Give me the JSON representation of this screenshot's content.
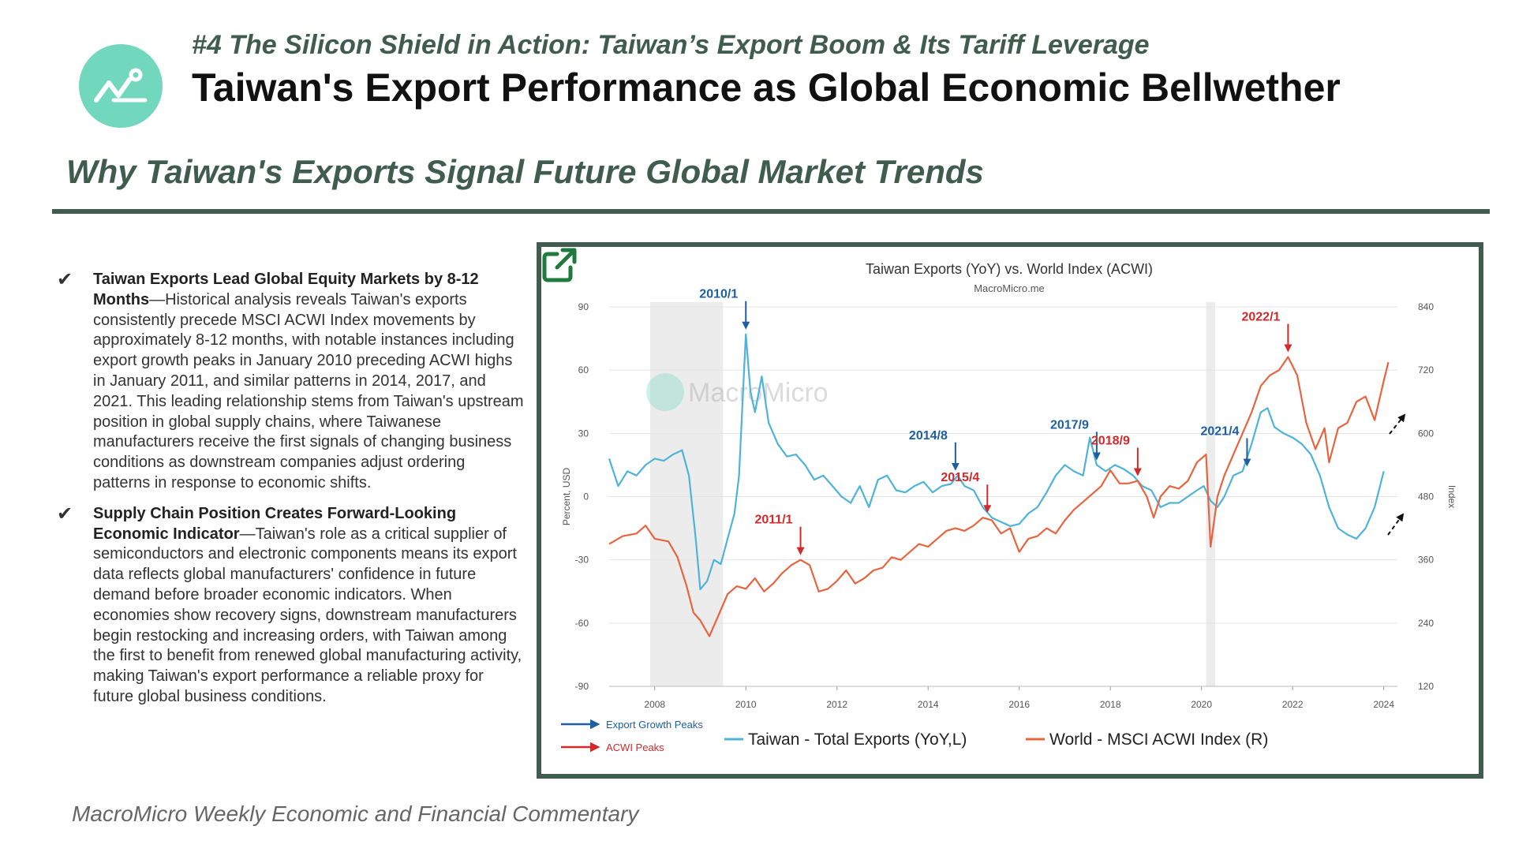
{
  "header": {
    "kicker": "#4 The Silicon Shield in Action: Taiwan’s Export Boom & Its Tariff Leverage",
    "title": "Taiwan's Export Performance as Global Economic Bellwether",
    "logo_icon": "chart-line-icon"
  },
  "subtitle": "Why Taiwan's Exports Signal Future Global Market Trends",
  "bullets": [
    {
      "heading": "Taiwan Exports Lead Global Equity Markets by 8-12 Months",
      "body": "—Historical analysis reveals Taiwan's exports consistently precede MSCI ACWI Index movements by approximately 8-12 months, with notable instances including export growth peaks in January 2010 preceding ACWI highs in January 2011, and similar patterns in 2014, 2017, and 2021. This leading relationship stems from Taiwan's upstream position in global supply chains, where Taiwanese manufacturers receive the first signals of changing business conditions as downstream companies adjust ordering patterns in response to economic shifts."
    },
    {
      "heading": "Supply Chain Position Creates Forward-Looking Economic Indicator",
      "body": "—Taiwan's role as a critical supplier of semiconductors and electronic components means its export data reflects global manufacturers' confidence in future demand before broader economic indicators. When economies show recovery signs, downstream manufacturers begin restocking and increasing orders, with Taiwan among the first to benefit from renewed global manufacturing activity, making Taiwan's export performance a reliable proxy for future global business conditions."
    }
  ],
  "footer": "MacroMicro Weekly Economic and Financial Commentary",
  "chart_data": {
    "type": "line",
    "title": "Taiwan Exports (YoY) vs. World Index (ACWI)",
    "source": "MacroMicro.me",
    "watermark": "MacroMicro",
    "ylabel_left": "Percent, USD",
    "ylabel_right": "Index",
    "xlim": [
      2007,
      2024.3
    ],
    "ylim_left": [
      -90,
      90
    ],
    "ylim_right": [
      120,
      840
    ],
    "x_ticks": [
      2008,
      2010,
      2012,
      2014,
      2016,
      2018,
      2020,
      2022,
      2024
    ],
    "y_ticks_left": [
      90,
      60,
      30,
      0,
      -30,
      -60,
      -90
    ],
    "y_ticks_right": [
      840,
      720,
      600,
      480,
      360,
      240,
      120
    ],
    "recessions": [
      [
        2007.9,
        2009.5
      ],
      [
        2020.1,
        2020.3
      ]
    ],
    "series": [
      {
        "name": "Taiwan - Total Exports (YoY,L)",
        "axis": "left",
        "color": "#4fb3d9",
        "points": [
          [
            2007.0,
            18
          ],
          [
            2007.2,
            5
          ],
          [
            2007.4,
            12
          ],
          [
            2007.6,
            10
          ],
          [
            2007.8,
            15
          ],
          [
            2008.0,
            18
          ],
          [
            2008.2,
            17
          ],
          [
            2008.4,
            20
          ],
          [
            2008.6,
            22
          ],
          [
            2008.75,
            10
          ],
          [
            2008.9,
            -20
          ],
          [
            2009.0,
            -44
          ],
          [
            2009.15,
            -40
          ],
          [
            2009.3,
            -30
          ],
          [
            2009.45,
            -32
          ],
          [
            2009.6,
            -20
          ],
          [
            2009.75,
            -8
          ],
          [
            2009.85,
            10
          ],
          [
            2010.0,
            77
          ],
          [
            2010.1,
            50
          ],
          [
            2010.2,
            40
          ],
          [
            2010.35,
            57
          ],
          [
            2010.5,
            35
          ],
          [
            2010.7,
            25
          ],
          [
            2010.9,
            19
          ],
          [
            2011.1,
            20
          ],
          [
            2011.3,
            15
          ],
          [
            2011.5,
            8
          ],
          [
            2011.7,
            10
          ],
          [
            2011.9,
            5
          ],
          [
            2012.1,
            0
          ],
          [
            2012.3,
            -3
          ],
          [
            2012.5,
            5
          ],
          [
            2012.7,
            -5
          ],
          [
            2012.9,
            8
          ],
          [
            2013.1,
            10
          ],
          [
            2013.3,
            3
          ],
          [
            2013.5,
            2
          ],
          [
            2013.7,
            5
          ],
          [
            2013.9,
            7
          ],
          [
            2014.1,
            2
          ],
          [
            2014.3,
            5
          ],
          [
            2014.5,
            6
          ],
          [
            2014.65,
            10
          ],
          [
            2014.8,
            5
          ],
          [
            2015.0,
            3
          ],
          [
            2015.2,
            -5
          ],
          [
            2015.4,
            -10
          ],
          [
            2015.6,
            -12
          ],
          [
            2015.8,
            -14
          ],
          [
            2016.0,
            -13
          ],
          [
            2016.2,
            -8
          ],
          [
            2016.4,
            -5
          ],
          [
            2016.6,
            2
          ],
          [
            2016.8,
            10
          ],
          [
            2017.0,
            15
          ],
          [
            2017.2,
            12
          ],
          [
            2017.4,
            10
          ],
          [
            2017.55,
            28
          ],
          [
            2017.7,
            15
          ],
          [
            2017.9,
            12
          ],
          [
            2018.1,
            15
          ],
          [
            2018.3,
            13
          ],
          [
            2018.5,
            10
          ],
          [
            2018.7,
            5
          ],
          [
            2018.9,
            3
          ],
          [
            2019.1,
            -5
          ],
          [
            2019.3,
            -3
          ],
          [
            2019.5,
            -3
          ],
          [
            2019.7,
            0
          ],
          [
            2019.9,
            3
          ],
          [
            2020.05,
            5
          ],
          [
            2020.2,
            -2
          ],
          [
            2020.35,
            -5
          ],
          [
            2020.5,
            0
          ],
          [
            2020.7,
            10
          ],
          [
            2020.9,
            12
          ],
          [
            2021.1,
            25
          ],
          [
            2021.3,
            40
          ],
          [
            2021.45,
            42
          ],
          [
            2021.6,
            33
          ],
          [
            2021.8,
            30
          ],
          [
            2022.0,
            28
          ],
          [
            2022.2,
            25
          ],
          [
            2022.4,
            20
          ],
          [
            2022.6,
            10
          ],
          [
            2022.8,
            -5
          ],
          [
            2023.0,
            -15
          ],
          [
            2023.2,
            -18
          ],
          [
            2023.4,
            -20
          ],
          [
            2023.6,
            -15
          ],
          [
            2023.8,
            -5
          ],
          [
            2024.0,
            12
          ]
        ]
      },
      {
        "name": "World - MSCI ACWI Index (R)",
        "axis": "right",
        "color": "#e8643f",
        "points": [
          [
            2007.0,
            390
          ],
          [
            2007.3,
            405
          ],
          [
            2007.6,
            410
          ],
          [
            2007.8,
            425
          ],
          [
            2008.0,
            400
          ],
          [
            2008.3,
            395
          ],
          [
            2008.5,
            365
          ],
          [
            2008.7,
            310
          ],
          [
            2008.85,
            260
          ],
          [
            2009.0,
            245
          ],
          [
            2009.2,
            215
          ],
          [
            2009.4,
            255
          ],
          [
            2009.6,
            295
          ],
          [
            2009.8,
            310
          ],
          [
            2010.0,
            305
          ],
          [
            2010.2,
            325
          ],
          [
            2010.4,
            300
          ],
          [
            2010.6,
            315
          ],
          [
            2010.8,
            335
          ],
          [
            2011.0,
            350
          ],
          [
            2011.2,
            360
          ],
          [
            2011.4,
            350
          ],
          [
            2011.6,
            300
          ],
          [
            2011.8,
            305
          ],
          [
            2012.0,
            320
          ],
          [
            2012.2,
            340
          ],
          [
            2012.4,
            315
          ],
          [
            2012.6,
            325
          ],
          [
            2012.8,
            340
          ],
          [
            2013.0,
            345
          ],
          [
            2013.2,
            365
          ],
          [
            2013.4,
            360
          ],
          [
            2013.6,
            375
          ],
          [
            2013.8,
            390
          ],
          [
            2014.0,
            385
          ],
          [
            2014.2,
            400
          ],
          [
            2014.4,
            415
          ],
          [
            2014.6,
            420
          ],
          [
            2014.8,
            415
          ],
          [
            2015.0,
            425
          ],
          [
            2015.2,
            440
          ],
          [
            2015.4,
            435
          ],
          [
            2015.6,
            410
          ],
          [
            2015.8,
            420
          ],
          [
            2016.0,
            375
          ],
          [
            2016.2,
            400
          ],
          [
            2016.4,
            405
          ],
          [
            2016.6,
            420
          ],
          [
            2016.8,
            410
          ],
          [
            2017.0,
            435
          ],
          [
            2017.2,
            455
          ],
          [
            2017.4,
            470
          ],
          [
            2017.6,
            485
          ],
          [
            2017.8,
            500
          ],
          [
            2018.0,
            530
          ],
          [
            2018.2,
            505
          ],
          [
            2018.4,
            505
          ],
          [
            2018.6,
            510
          ],
          [
            2018.8,
            480
          ],
          [
            2018.95,
            440
          ],
          [
            2019.1,
            480
          ],
          [
            2019.3,
            500
          ],
          [
            2019.5,
            495
          ],
          [
            2019.7,
            510
          ],
          [
            2019.9,
            545
          ],
          [
            2020.1,
            560
          ],
          [
            2020.2,
            385
          ],
          [
            2020.35,
            480
          ],
          [
            2020.5,
            520
          ],
          [
            2020.7,
            560
          ],
          [
            2020.9,
            600
          ],
          [
            2021.1,
            640
          ],
          [
            2021.3,
            690
          ],
          [
            2021.5,
            710
          ],
          [
            2021.7,
            720
          ],
          [
            2021.9,
            745
          ],
          [
            2022.1,
            710
          ],
          [
            2022.3,
            620
          ],
          [
            2022.5,
            570
          ],
          [
            2022.7,
            610
          ],
          [
            2022.8,
            545
          ],
          [
            2023.0,
            610
          ],
          [
            2023.2,
            620
          ],
          [
            2023.4,
            660
          ],
          [
            2023.6,
            670
          ],
          [
            2023.8,
            625
          ],
          [
            2024.0,
            700
          ],
          [
            2024.1,
            735
          ]
        ]
      }
    ],
    "annotations": [
      {
        "label": "2010/1",
        "type": "export",
        "x": 2010.0
      },
      {
        "label": "2011/1",
        "type": "acwi",
        "x": 2011.2
      },
      {
        "label": "2014/8",
        "type": "export",
        "x": 2014.6
      },
      {
        "label": "2015/4",
        "type": "acwi",
        "x": 2015.3
      },
      {
        "label": "2017/9",
        "type": "export",
        "x": 2017.7
      },
      {
        "label": "2018/9",
        "type": "acwi",
        "x": 2018.6
      },
      {
        "label": "2021/4",
        "type": "export",
        "x": 2021.0
      },
      {
        "label": "2022/1",
        "type": "acwi",
        "x": 2021.9
      }
    ],
    "legend": {
      "export_arrow_label": "Export Growth Peaks",
      "acwi_arrow_label": "ACWI Peaks",
      "export_color": "#1d5fa0",
      "acwi_color": "#d02a2a"
    }
  }
}
